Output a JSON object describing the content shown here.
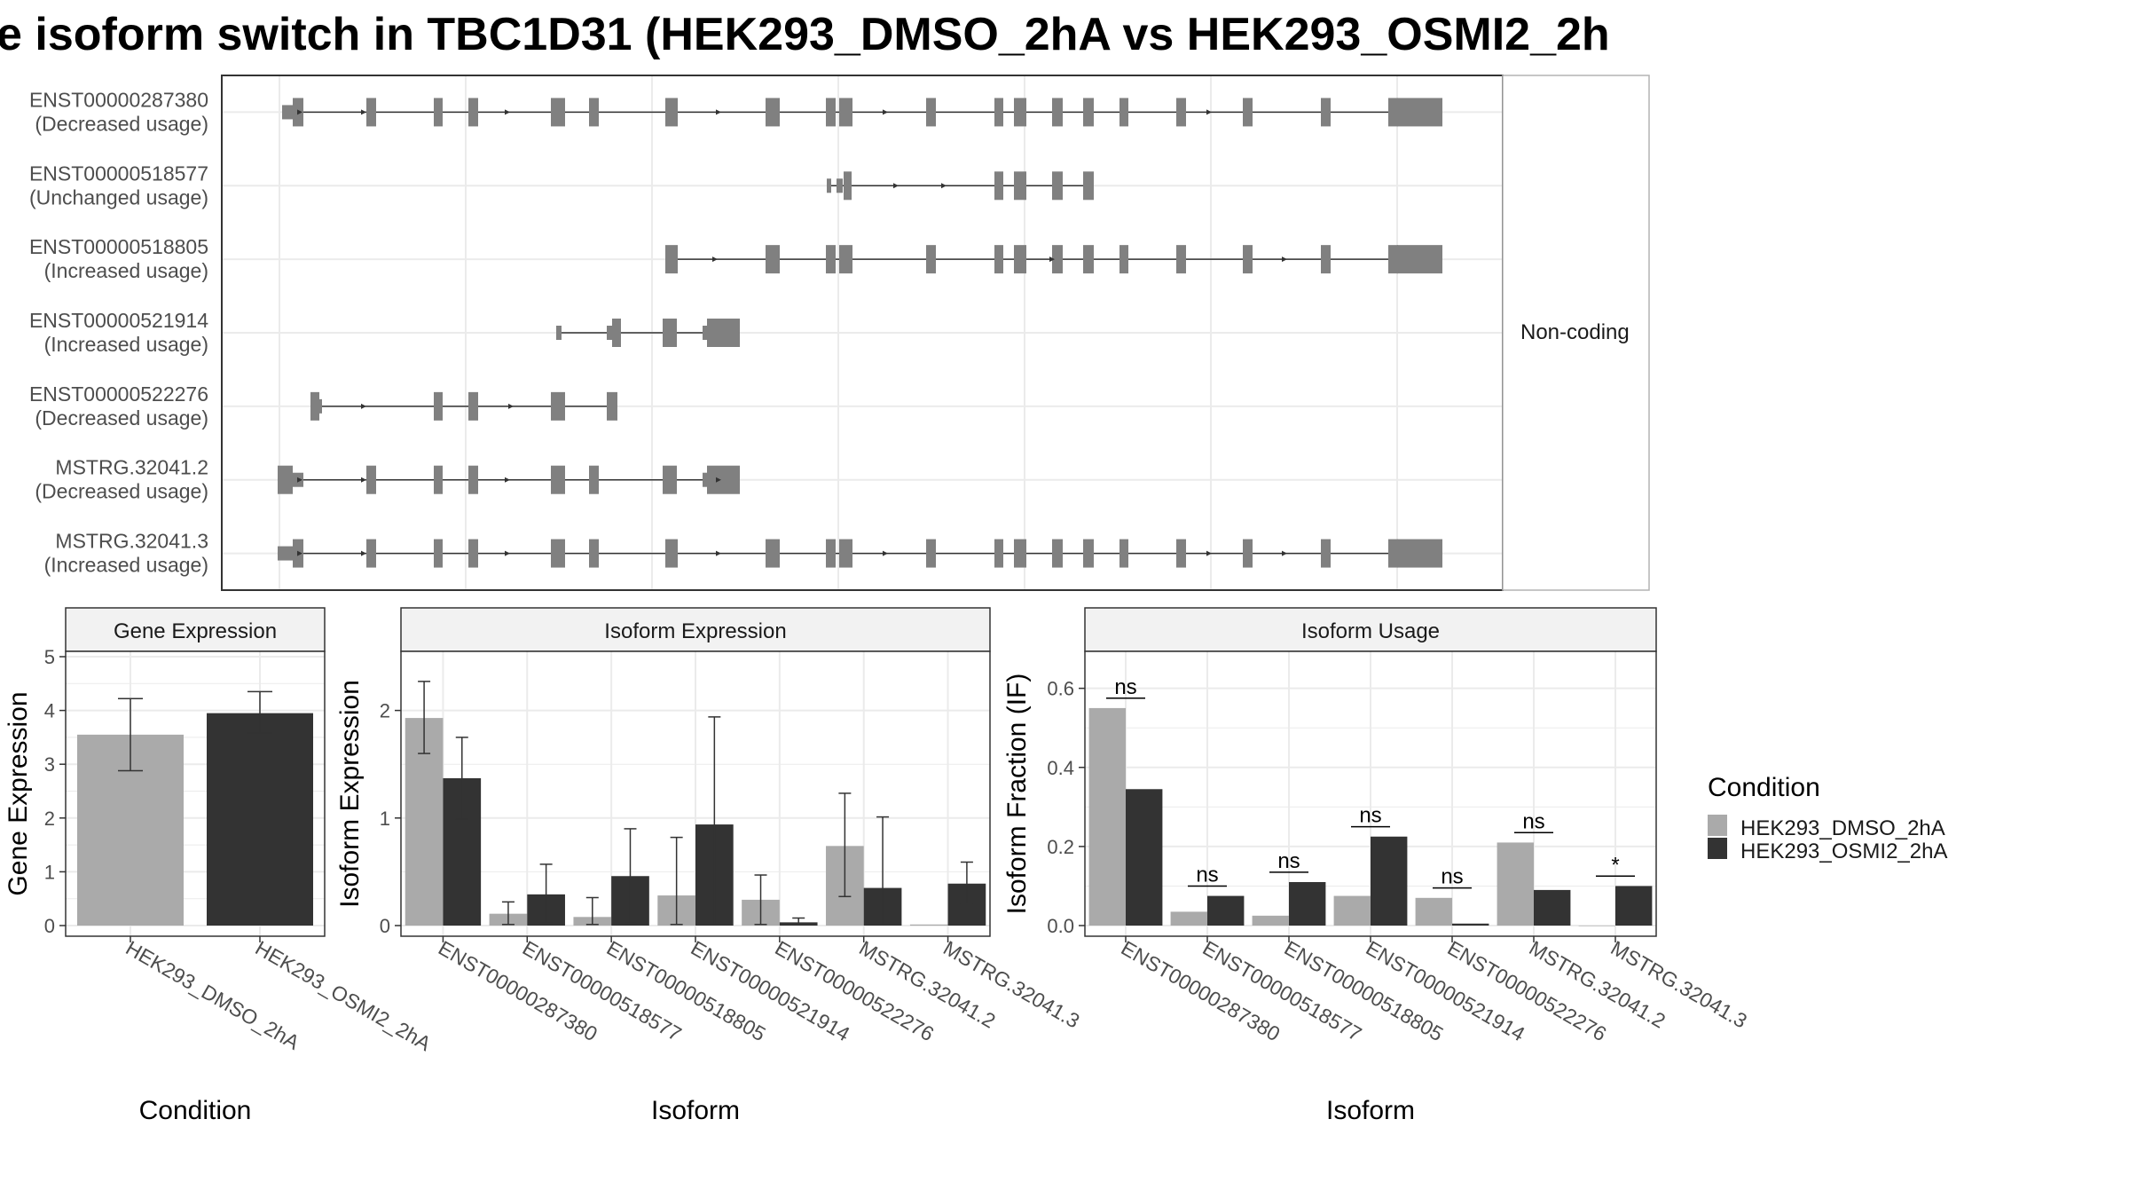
{
  "title": "e isoform switch in TBC1D31 (HEK293_DMSO_2hA vs HEK293_OSMI2_2h",
  "colors": {
    "dmso": "#aaaaaa",
    "osmi": "#333333",
    "exon": "#808080",
    "grid": "#ebebeb",
    "border": "#333333",
    "strip": "#f2f2f2"
  },
  "transcripts": {
    "strip_label": "Non-coding",
    "rows": [
      {
        "id": "ENST00000287380",
        "usage": "(Decreased usage)"
      },
      {
        "id": "ENST00000518577",
        "usage": "(Unchanged usage)"
      },
      {
        "id": "ENST00000518805",
        "usage": "(Increased usage)"
      },
      {
        "id": "ENST00000521914",
        "usage": "(Increased usage)"
      },
      {
        "id": "ENST00000522276",
        "usage": "(Decreased usage)"
      },
      {
        "id": "MSTRG.32041.2",
        "usage": "(Decreased usage)"
      },
      {
        "id": "MSTRG.32041.3",
        "usage": "(Increased usage)"
      }
    ]
  },
  "legend": {
    "title": "Condition",
    "items": [
      "HEK293_DMSO_2hA",
      "HEK293_OSMI2_2hA"
    ]
  },
  "chart_data": [
    {
      "type": "bar",
      "title": "Gene Expression",
      "xlabel": "Condition",
      "ylabel": "Gene Expression",
      "ylim": [
        0,
        5
      ],
      "yticks": [
        0,
        1,
        2,
        3,
        4,
        5
      ],
      "categories": [
        "HEK293_DMSO_2hA",
        "HEK293_OSMI2_2hA"
      ],
      "series": [
        {
          "name": "HEK293_DMSO_2hA",
          "values": [
            3.55,
            null
          ],
          "err_low": [
            2.88,
            null
          ],
          "err_high": [
            4.22,
            null
          ]
        },
        {
          "name": "HEK293_OSMI2_2hA",
          "values": [
            null,
            3.95
          ],
          "err_low": [
            null,
            3.58
          ],
          "err_high": [
            null,
            4.35
          ]
        }
      ]
    },
    {
      "type": "bar",
      "title": "Isoform Expression",
      "xlabel": "Isoform",
      "ylabel": "Isoform Expression",
      "ylim": [
        0,
        2.5
      ],
      "yticks": [
        0,
        1,
        2
      ],
      "categories": [
        "ENST00000287380",
        "ENST00000518577",
        "ENST00000518805",
        "ENST00000521914",
        "ENST00000522276",
        "MSTRG.32041.2",
        "MSTRG.32041.3"
      ],
      "series": [
        {
          "name": "HEK293_DMSO_2hA",
          "values": [
            1.93,
            0.11,
            0.08,
            0.28,
            0.24,
            0.74,
            0.01
          ],
          "err_low": [
            1.6,
            0.01,
            0.01,
            0.01,
            0.01,
            0.27,
            null
          ],
          "err_high": [
            2.27,
            0.22,
            0.26,
            0.82,
            0.47,
            1.23,
            null
          ]
        },
        {
          "name": "HEK293_OSMI2_2hA",
          "values": [
            1.37,
            0.29,
            0.46,
            0.94,
            0.03,
            0.35,
            0.39
          ],
          "err_low": [
            0.99,
            0.02,
            0.02,
            0.01,
            0.01,
            0.01,
            0.2
          ],
          "err_high": [
            1.75,
            0.57,
            0.9,
            1.94,
            0.07,
            1.01,
            0.59
          ]
        }
      ]
    },
    {
      "type": "bar",
      "title": "Isoform Usage",
      "xlabel": "Isoform",
      "ylabel": "Isoform Fraction (IF)",
      "ylim": [
        0,
        0.68
      ],
      "yticks": [
        0,
        0.2,
        0.4,
        0.6
      ],
      "ytick_labels": [
        "0.0",
        "0.2",
        "0.4",
        "0.6"
      ],
      "categories": [
        "ENST00000287380",
        "ENST00000518577",
        "ENST00000518805",
        "ENST00000521914",
        "ENST00000522276",
        "MSTRG.32041.2",
        "MSTRG.32041.3"
      ],
      "series": [
        {
          "name": "HEK293_DMSO_2hA",
          "values": [
            0.55,
            0.035,
            0.025,
            0.075,
            0.07,
            0.21,
            0
          ]
        },
        {
          "name": "HEK293_OSMI2_2hA",
          "values": [
            0.345,
            0.075,
            0.11,
            0.225,
            0.005,
            0.09,
            0.1
          ]
        }
      ],
      "significance": [
        "ns",
        "ns",
        "ns",
        "ns",
        "ns",
        "ns",
        "*"
      ],
      "sig_y": [
        0.575,
        0.1,
        0.135,
        0.25,
        0.095,
        0.235,
        0.125
      ]
    }
  ]
}
